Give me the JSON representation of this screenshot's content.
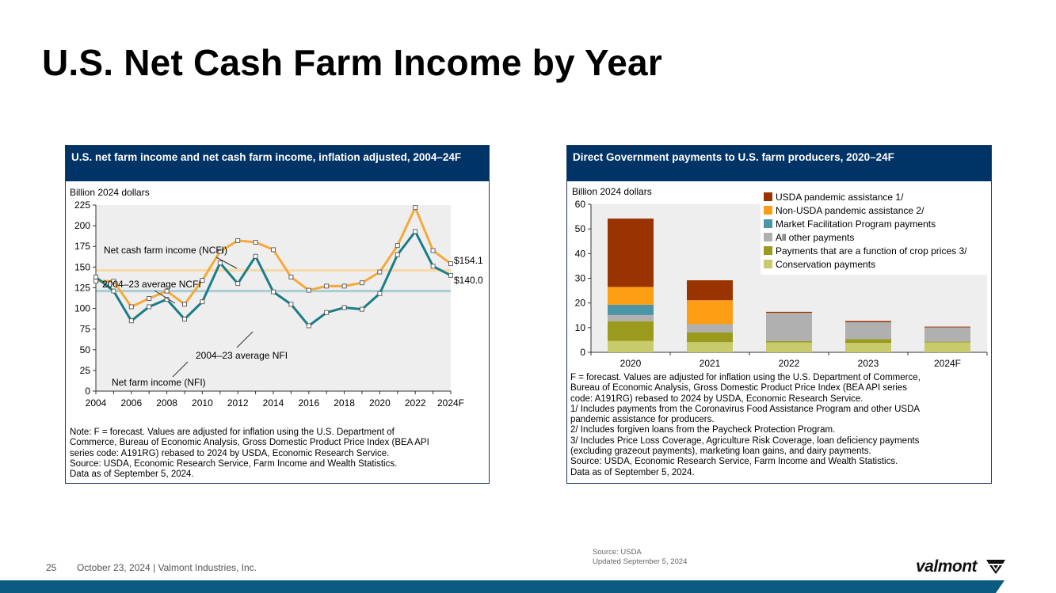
{
  "slide": {
    "title": "U.S. Net Cash Farm Income by Year",
    "page_number": "25",
    "footer": "October 23, 2024  | Valmont Industries, Inc.",
    "source_line1": "Source: USDA",
    "source_line2": "Updated September 5, 2024",
    "logo_text": "valmont",
    "accent_color": "#0b5a80"
  },
  "chart_data": [
    {
      "type": "line",
      "title": "U.S. net farm income and net cash farm income, inflation adjusted, 2004–24F",
      "ylabel": "Billion 2024 dollars",
      "ylim": [
        0,
        225
      ],
      "yticks": [
        0,
        25,
        50,
        75,
        100,
        125,
        150,
        175,
        200,
        225
      ],
      "x": [
        "2004",
        "2005",
        "2006",
        "2007",
        "2008",
        "2009",
        "2010",
        "2011",
        "2012",
        "2013",
        "2014",
        "2015",
        "2016",
        "2017",
        "2018",
        "2019",
        "2020",
        "2021",
        "2022",
        "2023",
        "2024F"
      ],
      "xtick_labels": [
        "2004",
        "2006",
        "2008",
        "2010",
        "2012",
        "2014",
        "2016",
        "2018",
        "2020",
        "2022",
        "2024F"
      ],
      "grid": false,
      "series": [
        {
          "name": "Net cash farm income (NCFI)",
          "color": "#f5a93c",
          "values": [
            133,
            133,
            102,
            112,
            121,
            105,
            134,
            169,
            182,
            180,
            171,
            138,
            122,
            127,
            127,
            131,
            144,
            176,
            222,
            170,
            154.1
          ]
        },
        {
          "name": "Net farm income (NFI)",
          "color": "#1a7d87",
          "values": [
            138,
            121,
            85,
            102,
            111,
            87,
            108,
            155,
            130,
            163,
            120,
            105,
            79,
            95,
            101,
            99,
            118,
            165,
            193,
            151,
            140.0
          ]
        }
      ],
      "reference_lines": [
        {
          "name": "2004–23 average NCFI",
          "value": 146,
          "color": "#f8d9a8"
        },
        {
          "name": "2004–23 average NFI",
          "value": 121,
          "color": "#a9cdd3"
        }
      ],
      "end_labels": [
        "$154.1",
        "$140.0"
      ],
      "note": "Note: F = forecast. Values are adjusted for inflation using the U.S. Department of\nCommerce, Bureau of Economic Analysis, Gross Domestic Product Price Index (BEA API\nseries code: A191RG) rebased to 2024 by USDA, Economic Research Service.\nSource: USDA, Economic Research Service, Farm Income and Wealth Statistics.\nData as of September 5, 2024."
    },
    {
      "type": "bar",
      "stacked": true,
      "title": "Direct Government payments to U.S. farm producers, 2020–24F",
      "ylabel": "Billion 2024 dollars",
      "ylim": [
        0,
        60
      ],
      "yticks": [
        0,
        10,
        20,
        30,
        40,
        50,
        60
      ],
      "categories": [
        "2020",
        "2021",
        "2022",
        "2023",
        "2024F"
      ],
      "legend_position": "top-right",
      "series": [
        {
          "name": "Conservation payments",
          "color": "#c8cb6c",
          "values": [
            4.6,
            4.1,
            4.0,
            3.8,
            4.0
          ]
        },
        {
          "name": "Payments that are a function of crop prices 3/",
          "color": "#9a9a1c",
          "values": [
            8.0,
            4.0,
            0.5,
            1.5,
            0.3
          ]
        },
        {
          "name": "All other payments",
          "color": "#b0b0b0",
          "values": [
            2.5,
            3.3,
            11.5,
            6.9,
            5.8
          ]
        },
        {
          "name": "Market Facilitation Program payments",
          "color": "#4c95a6",
          "values": [
            4.2,
            0,
            0,
            0,
            0
          ]
        },
        {
          "name": "Non-USDA pandemic assistance 2/",
          "color": "#fc9d14",
          "values": [
            7.2,
            9.7,
            0,
            0,
            0
          ]
        },
        {
          "name": "USDA pandemic assistance 1/",
          "color": "#993300",
          "values": [
            27.7,
            8.1,
            0.4,
            0.5,
            0.3
          ]
        }
      ],
      "note": "F = forecast. Values are adjusted for inflation using the U.S. Department of Commerce,\nBureau of Economic Analysis, Gross Domestic Product Price Index (BEA API  series\ncode: A191RG) rebased to 2024 by USDA, Economic Research Service.\n1/ Includes payments from the Coronavirus Food Assistance Program and other USDA\npandemic assistance for producers.\n2/ Includes forgiven loans from the Paycheck Protection Program.\n3/ Includes Price Loss Coverage, Agriculture Risk Coverage, loan deficiency payments\n(excluding grazeout payments), marketing loan gains, and dairy payments.\nSource: USDA, Economic Research Service, Farm Income and Wealth Statistics.\nData as of September 5, 2024."
    }
  ]
}
